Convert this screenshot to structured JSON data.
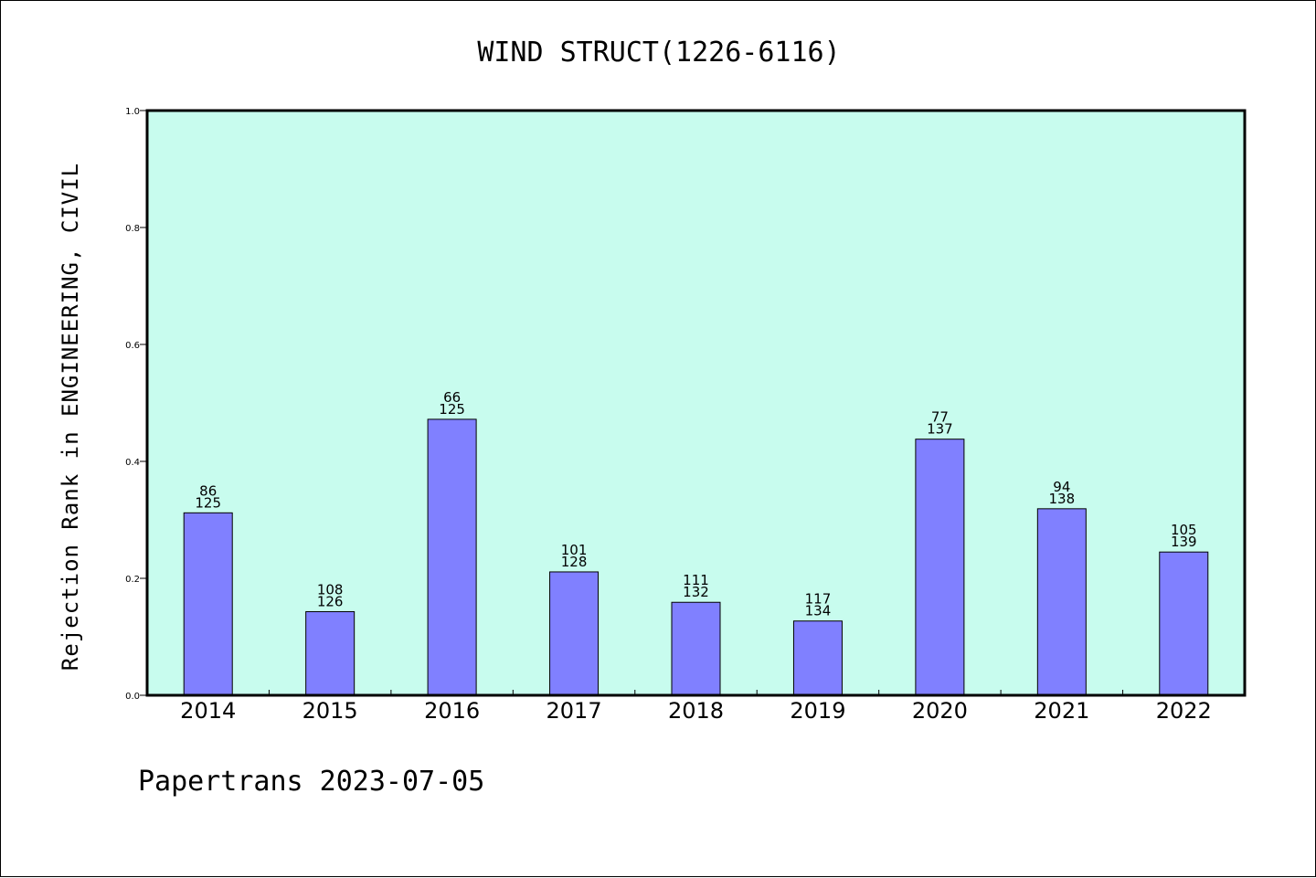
{
  "chart_data": {
    "type": "bar",
    "title": "WIND STRUCT(1226-6116)",
    "xlabel": "",
    "ylabel": "Rejection Rank in ENGINEERING, CIVIL",
    "ylim": [
      0,
      1.0
    ],
    "yticks": [
      "0.0",
      "0.2",
      "0.4",
      "0.6",
      "0.8",
      "1.0"
    ],
    "categories": [
      "2014",
      "2015",
      "2016",
      "2017",
      "2018",
      "2019",
      "2020",
      "2021",
      "2022"
    ],
    "values": [
      0.312,
      0.143,
      0.472,
      0.211,
      0.159,
      0.127,
      0.438,
      0.319,
      0.245
    ],
    "labels_top": [
      "86",
      "108",
      "66",
      "101",
      "111",
      "117",
      "77",
      "94",
      "105"
    ],
    "labels_bottom": [
      "125",
      "126",
      "125",
      "128",
      "132",
      "134",
      "137",
      "138",
      "139"
    ],
    "grid": false,
    "colors": {
      "plot_background": "#c8fcee",
      "bar_fill": "#8080ff",
      "bar_stroke": "#000000"
    }
  },
  "footer": "Papertrans 2023-07-05"
}
